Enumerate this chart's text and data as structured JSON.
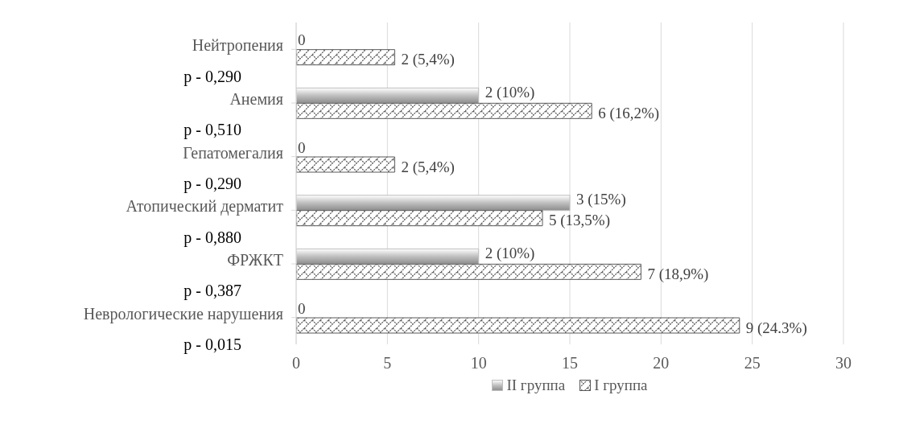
{
  "chart_data": {
    "type": "bar",
    "orientation": "horizontal",
    "categories": [
      "Нейтропения",
      "Анемия",
      "Гепатомегалия",
      "Атопический дерматит",
      "ФРЖКТ",
      "Неврологические нарушения"
    ],
    "series": [
      {
        "name": "II группа",
        "color": "#bfbfbf",
        "values": [
          0,
          10,
          0,
          15,
          10,
          0
        ],
        "value_labels": [
          "0",
          "2 (10%)",
          "0",
          "3 (15%)",
          "2 (10%)",
          "0"
        ]
      },
      {
        "name": "I группа",
        "color": "#595959",
        "values": [
          5.4,
          16.2,
          5.4,
          13.5,
          18.9,
          24.3
        ],
        "value_labels": [
          "2 (5,4%)",
          "6 (16,2%)",
          "2 (5,4%)",
          "5 (13,5%)",
          "7 (18,9%)",
          "9 (24.3%)"
        ]
      }
    ],
    "xlim": [
      0,
      30
    ],
    "xticks": [
      0,
      5,
      10,
      15,
      20,
      25,
      30
    ],
    "grid": "x",
    "legend": "bottom",
    "annotations": [
      "p - 0,290",
      "p - 0,510",
      "p - 0,290",
      "p - 0,880",
      "p - 0,387",
      "p - 0,015"
    ]
  }
}
